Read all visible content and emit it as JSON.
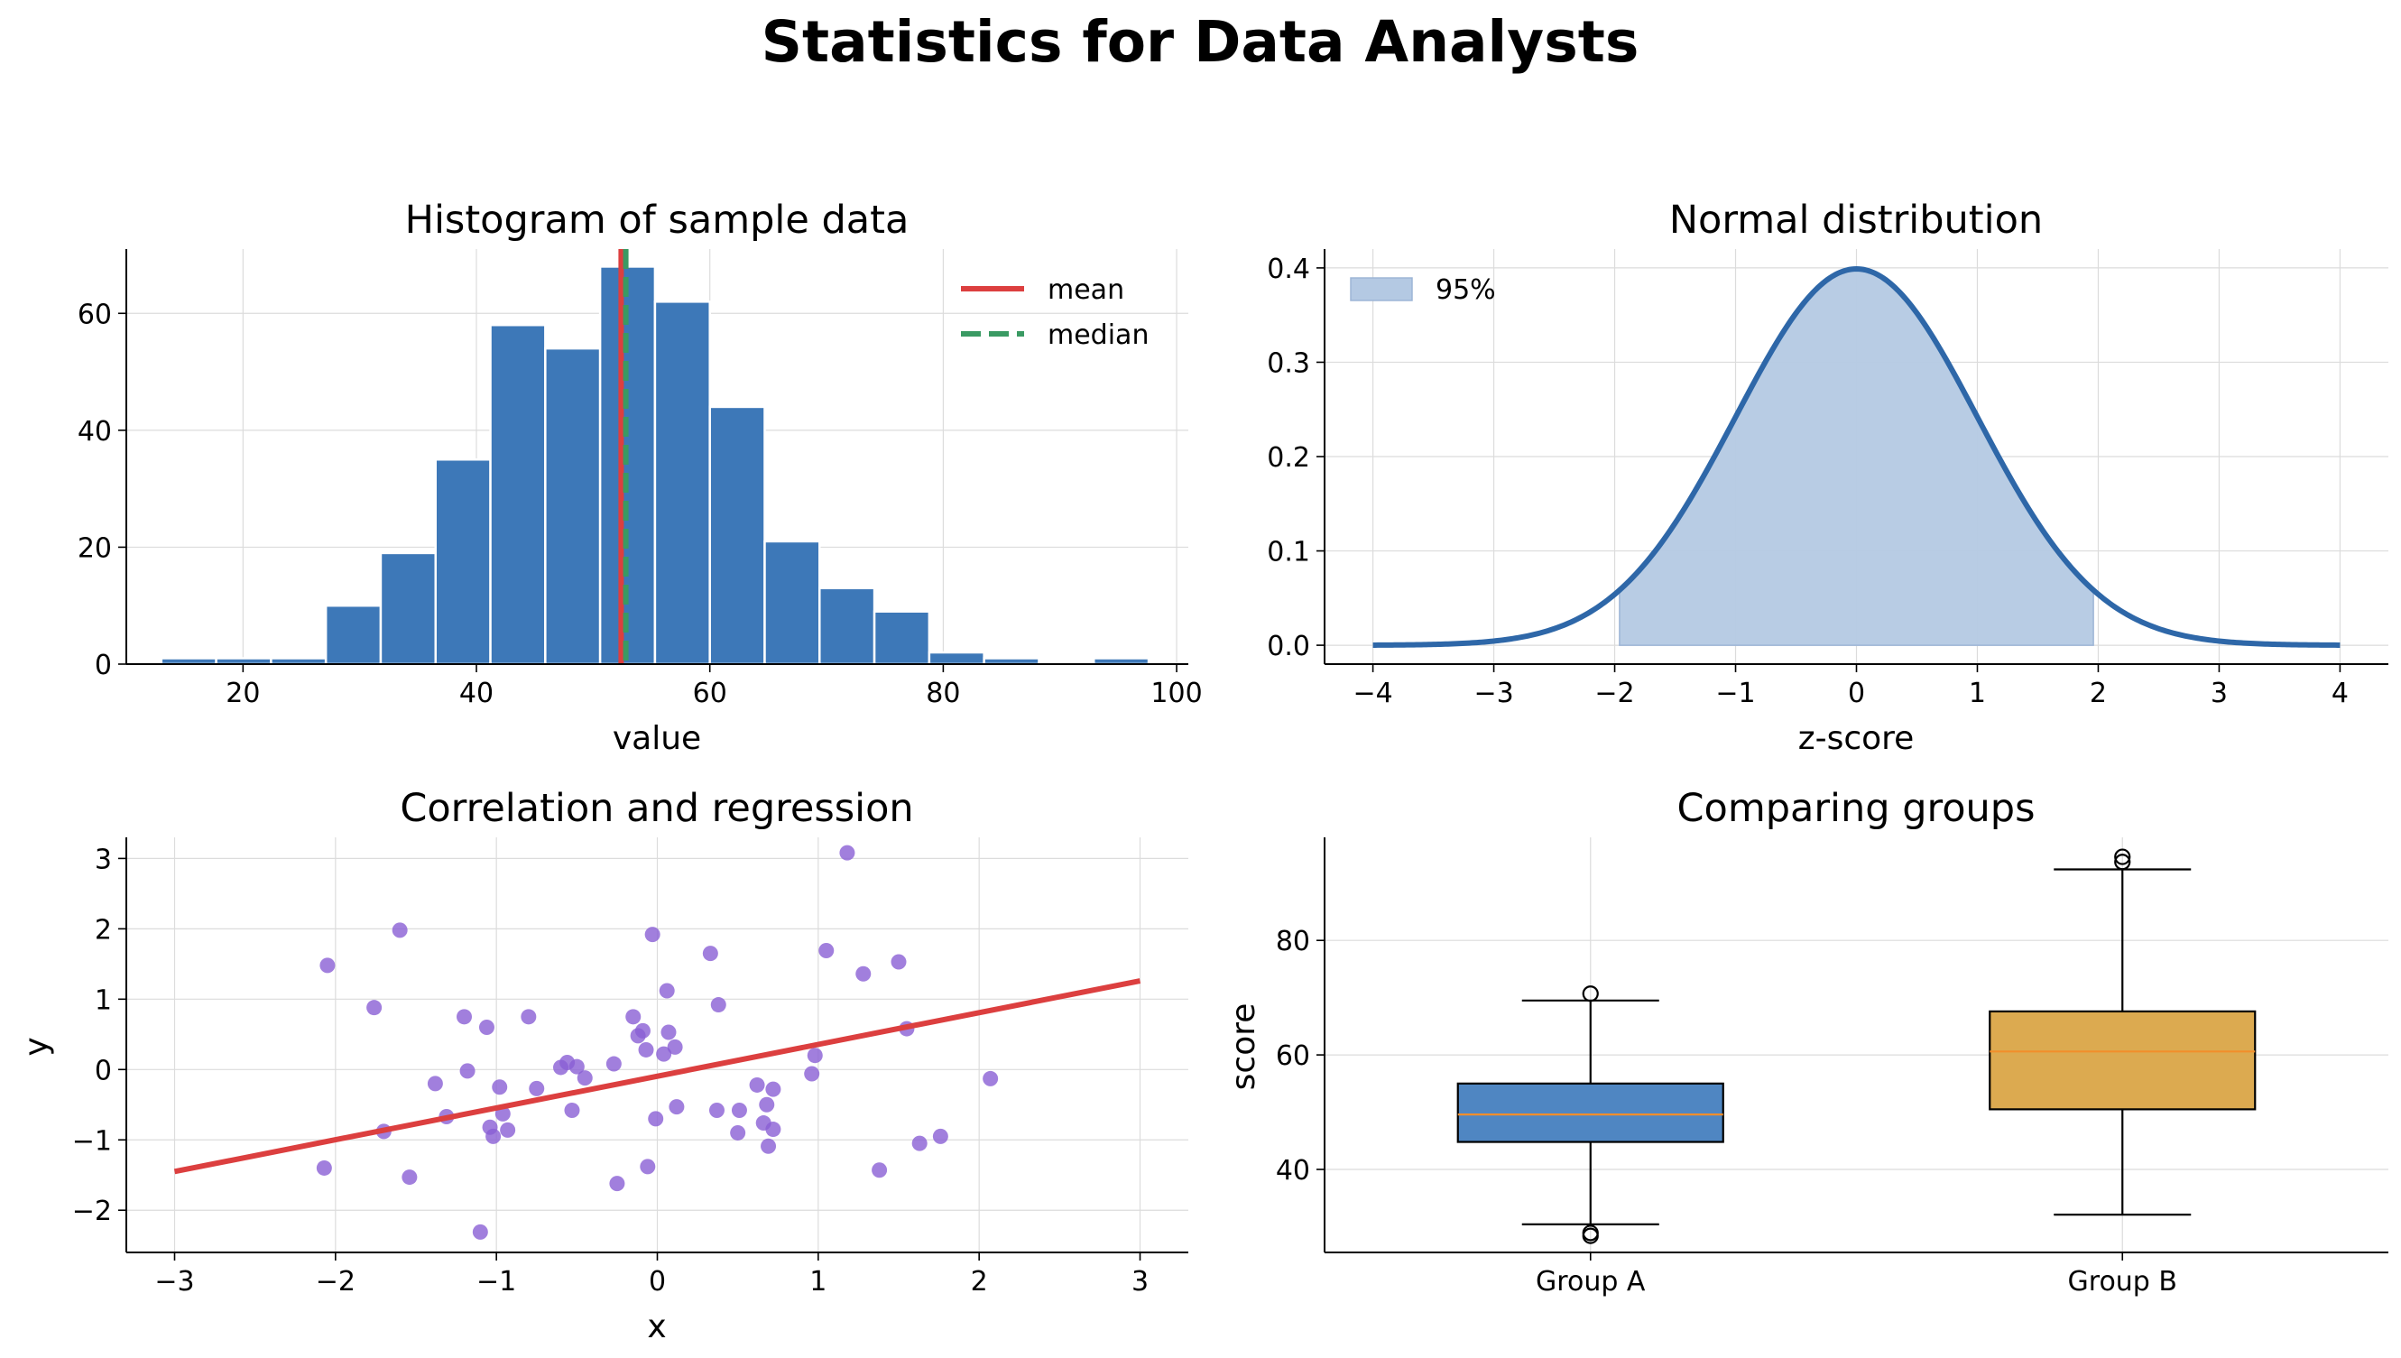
{
  "suptitle": "Statistics for Data Analysts",
  "chart_data": [
    {
      "type": "bar",
      "title": "Histogram of sample data",
      "xlabel": "value",
      "ylabel": "",
      "xlim": [
        10,
        101
      ],
      "ylim": [
        0,
        71
      ],
      "xticks": [
        20,
        40,
        60,
        80,
        100
      ],
      "yticks": [
        0,
        20,
        40,
        60
      ],
      "bin_width": 4.7,
      "bins_left": [
        13.0,
        17.7,
        22.4,
        27.1,
        31.8,
        36.5,
        41.2,
        45.9,
        50.6,
        55.3,
        60.0,
        64.7,
        69.4,
        74.1,
        78.8,
        83.5,
        88.2,
        92.9
      ],
      "counts": [
        1,
        1,
        1,
        10,
        19,
        35,
        58,
        54,
        68,
        62,
        44,
        21,
        13,
        9,
        2,
        1,
        0,
        1
      ],
      "mean": 52.4,
      "median": 52.8,
      "legend": [
        "mean",
        "median"
      ],
      "legend_position": "upper right",
      "colors": {
        "bars": "#3d78b8",
        "mean": "#dc3f3f",
        "median": "#3a9a63"
      },
      "grid": true
    },
    {
      "type": "line",
      "title": "Normal distribution",
      "xlabel": "z-score",
      "ylabel": "",
      "xlim": [
        -4.4,
        4.4
      ],
      "ylim": [
        -0.02,
        0.42
      ],
      "xticks": [
        -4,
        -3,
        -2,
        -1,
        0,
        1,
        2,
        3,
        4
      ],
      "yticks": [
        0.0,
        0.1,
        0.2,
        0.3,
        0.4
      ],
      "curve": "standard normal pdf",
      "x_range": [
        -4,
        4
      ],
      "shaded_interval": [
        -1.96,
        1.96
      ],
      "legend": [
        "95%"
      ],
      "legend_position": "upper left",
      "colors": {
        "line": "#2e67a8",
        "fill": "#b4c9e3"
      },
      "grid": true
    },
    {
      "type": "scatter",
      "title": "Correlation and regression",
      "xlabel": "x",
      "ylabel": "y",
      "xlim": [
        -3.3,
        3.3
      ],
      "ylim": [
        -2.6,
        3.3
      ],
      "xticks": [
        -3,
        -2,
        -1,
        0,
        1,
        2,
        3
      ],
      "yticks": [
        -2,
        -1,
        0,
        1,
        2,
        3
      ],
      "points": [
        [
          -2.05,
          1.48
        ],
        [
          -2.07,
          -1.4
        ],
        [
          -1.76,
          0.88
        ],
        [
          -1.7,
          -0.88
        ],
        [
          -1.6,
          1.98
        ],
        [
          -1.54,
          -1.53
        ],
        [
          -1.38,
          -0.2
        ],
        [
          -1.31,
          -0.67
        ],
        [
          -1.2,
          0.75
        ],
        [
          -1.18,
          -0.02
        ],
        [
          -1.1,
          -2.31
        ],
        [
          -1.06,
          0.6
        ],
        [
          -1.04,
          -0.82
        ],
        [
          -1.02,
          -0.95
        ],
        [
          -0.98,
          -0.25
        ],
        [
          -0.96,
          -0.63
        ],
        [
          -0.93,
          -0.86
        ],
        [
          -0.8,
          0.75
        ],
        [
          -0.75,
          -0.27
        ],
        [
          -0.6,
          0.03
        ],
        [
          -0.56,
          0.1
        ],
        [
          -0.53,
          -0.58
        ],
        [
          -0.5,
          0.04
        ],
        [
          -0.45,
          -0.12
        ],
        [
          -0.27,
          0.08
        ],
        [
          -0.25,
          -1.62
        ],
        [
          -0.15,
          0.75
        ],
        [
          -0.12,
          0.48
        ],
        [
          -0.09,
          0.55
        ],
        [
          -0.07,
          0.28
        ],
        [
          -0.06,
          -1.38
        ],
        [
          -0.03,
          1.92
        ],
        [
          -0.01,
          -0.7
        ],
        [
          0.04,
          0.22
        ],
        [
          0.06,
          1.12
        ],
        [
          0.07,
          0.53
        ],
        [
          0.11,
          0.32
        ],
        [
          0.12,
          -0.53
        ],
        [
          0.33,
          1.65
        ],
        [
          0.37,
          -0.58
        ],
        [
          0.38,
          0.92
        ],
        [
          0.5,
          -0.9
        ],
        [
          0.51,
          -0.58
        ],
        [
          0.62,
          -0.22
        ],
        [
          0.66,
          -0.76
        ],
        [
          0.68,
          -0.5
        ],
        [
          0.69,
          -1.09
        ],
        [
          0.72,
          -0.28
        ],
        [
          0.72,
          -0.85
        ],
        [
          0.96,
          -0.06
        ],
        [
          0.98,
          0.2
        ],
        [
          1.05,
          1.69
        ],
        [
          1.18,
          3.08
        ],
        [
          1.28,
          1.36
        ],
        [
          1.38,
          -1.43
        ],
        [
          1.5,
          1.53
        ],
        [
          1.55,
          0.58
        ],
        [
          1.63,
          -1.05
        ],
        [
          1.76,
          -0.95
        ],
        [
          2.07,
          -0.13
        ]
      ],
      "regression_line": {
        "x": [
          -3,
          3
        ],
        "y": [
          -1.45,
          1.26
        ]
      },
      "colors": {
        "points": "#8a5fd5",
        "line": "#dc3f3f"
      },
      "grid": true
    },
    {
      "type": "box",
      "title": "Comparing groups",
      "xlabel": "",
      "ylabel": "score",
      "ylim": [
        25.5,
        98
      ],
      "yticks": [
        40,
        60,
        80
      ],
      "groups": [
        {
          "name": "Group A",
          "q1": 44.8,
          "median": 49.6,
          "q3": 55.0,
          "whisker_low": 30.4,
          "whisker_high": 69.5,
          "outliers": [
            70.7,
            28.9,
            28.4
          ],
          "color": "#4f86c2"
        },
        {
          "name": "Group B",
          "q1": 50.5,
          "median": 60.6,
          "q3": 67.6,
          "whisker_low": 32.1,
          "whisker_high": 92.4,
          "outliers": [
            94.6,
            93.7
          ],
          "color": "#dcaa50"
        }
      ],
      "colors": {
        "median_line": "#f28e2b"
      },
      "grid": true
    }
  ]
}
